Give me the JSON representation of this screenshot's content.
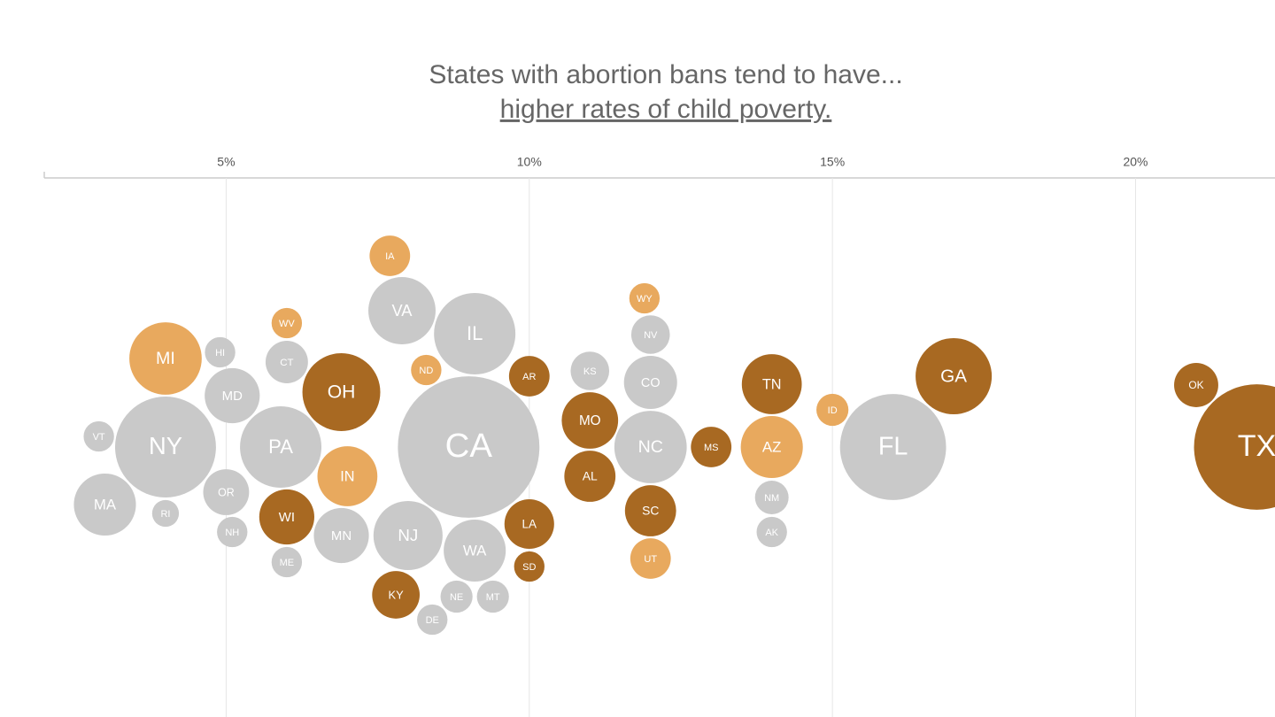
{
  "chart_data": {
    "type": "bubble",
    "title": "States with abortion bans tend to have...",
    "subtitle": "higher rates of child poverty.",
    "categories": [
      "MA",
      "RI",
      "VT",
      "NY",
      "MI",
      "OR",
      "MD",
      "NH",
      "HI",
      "ME",
      "WI",
      "WV",
      "PA",
      "CT",
      "MN",
      "OH",
      "IN",
      "IA",
      "ND",
      "KY",
      "NJ",
      "VA",
      "IL",
      "NE",
      "MT",
      "WA",
      "DE",
      "CA",
      "AR",
      "SD",
      "LA",
      "KS",
      "AL",
      "MO",
      "NV",
      "NC",
      "WY",
      "CO",
      "UT",
      "SC",
      "MS",
      "AK",
      "TN",
      "AZ",
      "NM",
      "ID",
      "FL",
      "GA",
      "OK",
      "TX"
    ],
    "values": [
      3.0,
      4.0,
      2.9,
      4.0,
      4.0,
      5.0,
      5.1,
      5.1,
      4.9,
      6.0,
      6.0,
      6.0,
      5.9,
      6.0,
      6.9,
      6.9,
      7.0,
      7.7,
      8.3,
      7.8,
      8.0,
      7.9,
      9.1,
      8.8,
      9.4,
      9.1,
      8.4,
      9.0,
      10.0,
      10.0,
      10.0,
      11.0,
      11.0,
      11.0,
      12.0,
      12.0,
      11.9,
      12.0,
      12.0,
      12.0,
      13.0,
      14.0,
      14.0,
      14.0,
      14.0,
      15.0,
      16.0,
      17.0,
      21.0,
      22.0
    ],
    "sizes": [
      7.5,
      1.4,
      1.8,
      19.8,
      10.2,
      4.1,
      5.9,
      1.8,
      1.8,
      1.8,
      5.9,
      1.8,
      12.9,
      3.5,
      5.9,
      11.8,
      7.0,
      3.2,
      1.8,
      4.4,
      9.3,
      8.8,
      12.9,
      2.0,
      2.0,
      7.5,
      1.8,
      39,
      3.2,
      1.8,
      4.8,
      2.9,
      5.1,
      6.2,
      2.9,
      10.2,
      1.8,
      5.5,
      3.2,
      5.1,
      3.2,
      1.8,
      7.0,
      7.5,
      2.2,
      2.0,
      21.9,
      11.3,
      3.8,
      30.7
    ],
    "colors": [
      "#c9c9c9",
      "#c9c9c9",
      "#c9c9c9",
      "#c9c9c9",
      "#e8a95e",
      "#c9c9c9",
      "#c9c9c9",
      "#c9c9c9",
      "#c9c9c9",
      "#c9c9c9",
      "#a86922",
      "#e8a95e",
      "#c9c9c9",
      "#c9c9c9",
      "#c9c9c9",
      "#a86922",
      "#e8a95e",
      "#e8a95e",
      "#e8a95e",
      "#a86922",
      "#c9c9c9",
      "#c9c9c9",
      "#c9c9c9",
      "#c9c9c9",
      "#c9c9c9",
      "#c9c9c9",
      "#c9c9c9",
      "#c9c9c9",
      "#a86922",
      "#a86922",
      "#a86922",
      "#c9c9c9",
      "#a86922",
      "#a86922",
      "#c9c9c9",
      "#c9c9c9",
      "#e8a95e",
      "#c9c9c9",
      "#e8a95e",
      "#a86922",
      "#a86922",
      "#c9c9c9",
      "#a86922",
      "#e8a95e",
      "#c9c9c9",
      "#e8a95e",
      "#c9c9c9",
      "#a86922",
      "#a86922",
      "#a86922"
    ],
    "xlim": [
      2,
      22.3
    ],
    "xticks": [
      {
        "value": 5,
        "label": "5%"
      },
      {
        "value": 10,
        "label": "10%"
      },
      {
        "value": 15,
        "label": "15%"
      },
      {
        "value": 20,
        "label": "20%"
      }
    ],
    "grid": true
  }
}
